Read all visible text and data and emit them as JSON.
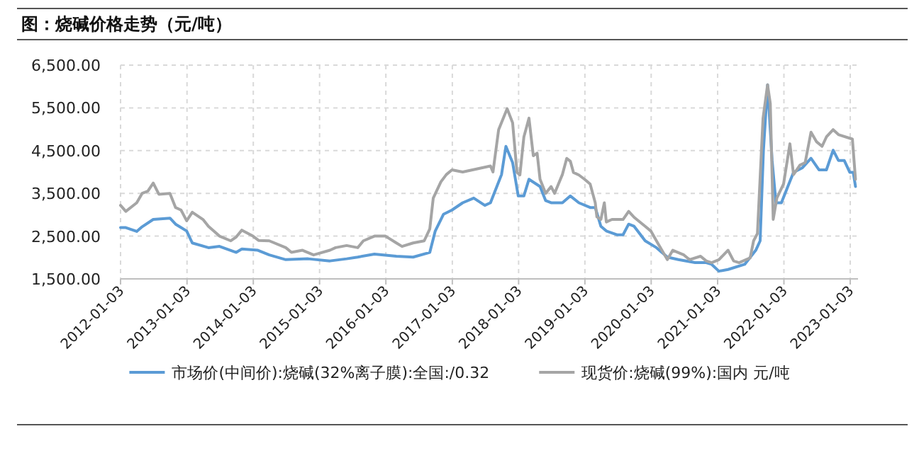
{
  "chart_data": {
    "type": "line",
    "title": "图：烧碱价格走势（元/吨）",
    "legend": "bottom",
    "grid": true,
    "line_style": "solid",
    "marker": "none",
    "xlim": [
      "2012-01-03",
      "2023-02-15"
    ],
    "xticks": [
      "2012-01-03",
      "2013-01-03",
      "2014-01-03",
      "2015-01-03",
      "2016-01-03",
      "2017-01-03",
      "2018-01-03",
      "2019-01-03",
      "2020-01-03",
      "2021-01-03",
      "2022-01-03",
      "2023-01-03"
    ],
    "ylim": [
      1500,
      6500
    ],
    "yticks": [
      {
        "value": 1500,
        "label": "1,500.00"
      },
      {
        "value": 2500,
        "label": "2,500.00"
      },
      {
        "value": 3500,
        "label": "3,500.00"
      },
      {
        "value": 4500,
        "label": "4,500.00"
      },
      {
        "value": 5500,
        "label": "5,500.00"
      },
      {
        "value": 6500,
        "label": "6,500.00"
      }
    ],
    "series": [
      {
        "name": "市场价(中间价):烧碱(32%离子膜):全国:/0.32",
        "color": "#5b9bd5",
        "x": [
          "2012-01-03",
          "2012-02-01",
          "2012-04-01",
          "2012-05-01",
          "2012-07-01",
          "2012-10-01",
          "2012-11-01",
          "2013-01-01",
          "2013-02-01",
          "2013-05-01",
          "2013-07-01",
          "2013-10-01",
          "2013-11-01",
          "2014-01-28",
          "2014-04-01",
          "2014-07-01",
          "2014-11-01",
          "2015-03-01",
          "2015-06-01",
          "2015-08-01",
          "2015-11-01",
          "2016-03-01",
          "2016-06-01",
          "2016-09-01",
          "2016-10-01",
          "2016-11-15",
          "2017-01-01",
          "2017-03-01",
          "2017-05-01",
          "2017-07-01",
          "2017-08-01",
          "2017-10-01",
          "2017-10-25",
          "2017-12-01",
          "2018-01-01",
          "2018-02-01",
          "2018-03-01",
          "2018-05-01",
          "2018-06-01",
          "2018-07-01",
          "2018-09-01",
          "2018-10-15",
          "2018-12-01",
          "2019-02-01",
          "2019-03-01",
          "2019-04-01",
          "2019-05-01",
          "2019-07-01",
          "2019-08-01",
          "2019-09-01",
          "2019-10-01",
          "2019-12-01",
          "2020-02-01",
          "2020-04-01",
          "2020-06-01",
          "2020-09-01",
          "2020-11-01",
          "2020-12-01",
          "2021-01-10",
          "2021-03-01",
          "2021-06-01",
          "2021-08-01",
          "2021-08-25",
          "2021-09-12",
          "2021-10-05",
          "2021-10-30",
          "2021-11-20",
          "2021-12-20",
          "2022-01-30",
          "2022-02-25",
          "2022-04-15",
          "2022-06-01",
          "2022-07-15",
          "2022-08-25",
          "2022-10-01",
          "2022-10-30",
          "2022-12-01",
          "2023-01-01",
          "2023-01-20",
          "2023-02-01"
        ],
        "values": [
          2700,
          2700,
          2610,
          2720,
          2890,
          2920,
          2780,
          2620,
          2340,
          2230,
          2260,
          2120,
          2200,
          2170,
          2060,
          1950,
          1970,
          1920,
          1970,
          2010,
          2080,
          2030,
          2010,
          2120,
          2620,
          3010,
          3110,
          3280,
          3390,
          3220,
          3280,
          3940,
          4600,
          4220,
          3440,
          3440,
          3830,
          3660,
          3330,
          3280,
          3280,
          3440,
          3280,
          3170,
          3170,
          2730,
          2620,
          2530,
          2530,
          2780,
          2730,
          2390,
          2230,
          2010,
          1950,
          1880,
          1880,
          1840,
          1680,
          1720,
          1840,
          2170,
          2390,
          4490,
          6040,
          4270,
          3280,
          3280,
          3720,
          3990,
          4100,
          4320,
          4050,
          4050,
          4510,
          4270,
          4270,
          3990,
          3990,
          3660
        ]
      },
      {
        "name": "现货价:烧碱(99%):国内 元/吨",
        "color": "#a5a5a5",
        "x": [
          "2012-01-03",
          "2012-02-01",
          "2012-04-01",
          "2012-05-01",
          "2012-06-01",
          "2012-07-01",
          "2012-08-01",
          "2012-10-01",
          "2012-11-01",
          "2012-12-01",
          "2013-01-01",
          "2013-02-01",
          "2013-04-01",
          "2013-05-01",
          "2013-07-01",
          "2013-09-01",
          "2013-10-01",
          "2013-11-01",
          "2014-01-01",
          "2014-02-01",
          "2014-04-01",
          "2014-07-01",
          "2014-08-01",
          "2014-10-01",
          "2014-12-01",
          "2015-03-01",
          "2015-04-01",
          "2015-06-01",
          "2015-08-01",
          "2015-09-01",
          "2015-11-01",
          "2016-01-01",
          "2016-03-01",
          "2016-04-01",
          "2016-06-01",
          "2016-08-01",
          "2016-09-01",
          "2016-09-20",
          "2016-11-01",
          "2016-12-01",
          "2017-01-01",
          "2017-03-01",
          "2017-08-01",
          "2017-08-15",
          "2017-09-15",
          "2017-11-01",
          "2017-12-01",
          "2017-12-25",
          "2018-01-10",
          "2018-02-01",
          "2018-03-01",
          "2018-03-25",
          "2018-04-15",
          "2018-05-01",
          "2018-06-01",
          "2018-07-01",
          "2018-07-20",
          "2018-09-01",
          "2018-09-25",
          "2018-10-15",
          "2018-11-01",
          "2018-12-01",
          "2019-01-01",
          "2019-02-01",
          "2019-03-01",
          "2019-03-10",
          "2019-04-01",
          "2019-04-20",
          "2019-05-01",
          "2019-06-01",
          "2019-08-01",
          "2019-09-01",
          "2019-10-01",
          "2019-12-01",
          "2020-01-01",
          "2020-02-01",
          "2020-04-01",
          "2020-05-01",
          "2020-07-01",
          "2020-08-01",
          "2020-10-01",
          "2020-11-01",
          "2020-12-01",
          "2021-01-10",
          "2021-03-01",
          "2021-04-01",
          "2021-05-01",
          "2021-07-01",
          "2021-07-20",
          "2021-08-10",
          "2021-09-10",
          "2021-10-05",
          "2021-10-20",
          "2021-11-05",
          "2021-11-25",
          "2022-01-01",
          "2022-02-05",
          "2022-02-25",
          "2022-04-01",
          "2022-04-30",
          "2022-06-01",
          "2022-07-01",
          "2022-08-01",
          "2022-08-25",
          "2022-10-01",
          "2022-11-01",
          "2023-01-15",
          "2023-02-01"
        ],
        "values": [
          3220,
          3080,
          3280,
          3500,
          3550,
          3740,
          3480,
          3500,
          3170,
          3110,
          2860,
          3060,
          2890,
          2730,
          2500,
          2390,
          2480,
          2640,
          2500,
          2400,
          2390,
          2230,
          2120,
          2170,
          2060,
          2170,
          2230,
          2280,
          2230,
          2390,
          2500,
          2500,
          2340,
          2260,
          2340,
          2390,
          2670,
          3390,
          3770,
          3940,
          4050,
          4000,
          4140,
          4000,
          4990,
          5480,
          5150,
          3990,
          3930,
          4820,
          5260,
          4380,
          4440,
          3830,
          3500,
          3660,
          3500,
          3940,
          4320,
          4250,
          3990,
          3930,
          3830,
          3720,
          3280,
          2950,
          2890,
          3280,
          2830,
          2890,
          2890,
          3080,
          2940,
          2730,
          2620,
          2390,
          1950,
          2170,
          2060,
          1950,
          2030,
          1920,
          1880,
          1950,
          2170,
          1920,
          1880,
          1990,
          2390,
          2560,
          5260,
          6040,
          5600,
          2890,
          3390,
          3720,
          4660,
          3940,
          4160,
          4220,
          4930,
          4710,
          4600,
          4820,
          4990,
          4870,
          4770,
          3830
        ]
      }
    ]
  }
}
